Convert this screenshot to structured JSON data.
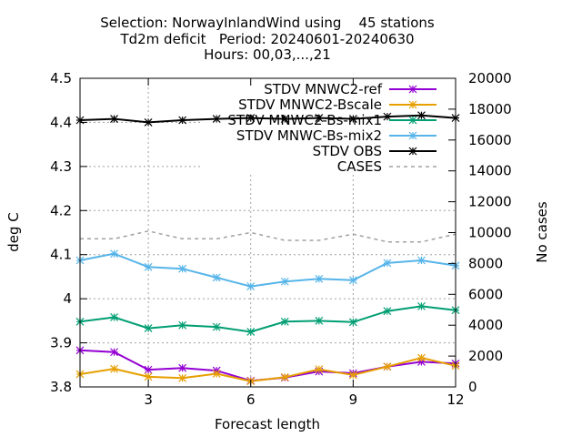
{
  "chart_data": {
    "type": "line",
    "title": [
      "Selection: NorwayInlandWind using    45 stations",
      "Td2m deficit   Period: 20240601-20240630",
      "Hours: 00,03,...,21"
    ],
    "xlabel": "Forecast length",
    "ylabel": "deg C",
    "y2label": "No cases",
    "xlim": [
      1,
      12
    ],
    "ylim": [
      3.8,
      4.5
    ],
    "y2lim": [
      0,
      20000
    ],
    "xticks": [
      3,
      6,
      9,
      12
    ],
    "yticks": [
      3.8,
      3.9,
      4.0,
      4.1,
      4.2,
      4.3,
      4.4,
      4.5
    ],
    "ytick_labels": [
      "3.8",
      "3.9",
      "4",
      "4.1",
      "4.2",
      "4.3",
      "4.4",
      "4.5"
    ],
    "y2ticks": [
      0,
      2000,
      4000,
      6000,
      8000,
      10000,
      12000,
      14000,
      16000,
      18000,
      20000
    ],
    "grid": true,
    "legend_position": "top-right",
    "x": [
      1,
      2,
      3,
      4,
      5,
      6,
      7,
      8,
      9,
      10,
      11,
      12
    ],
    "series": [
      {
        "name": "STDV MNWC2-ref",
        "color": "#9400d3",
        "axis": "y1",
        "marker": "star",
        "values": [
          3.883,
          3.879,
          3.839,
          3.843,
          3.837,
          3.814,
          3.821,
          3.835,
          3.831,
          3.846,
          3.857,
          3.853
        ]
      },
      {
        "name": "STDV MNWC2-Bscale",
        "color": "#e69f00",
        "axis": "y1",
        "marker": "star",
        "values": [
          3.829,
          3.841,
          3.823,
          3.82,
          3.83,
          3.813,
          3.822,
          3.84,
          3.827,
          3.846,
          3.866,
          3.848
        ]
      },
      {
        "name": "STDV MNWC2-Bs-mix1",
        "color": "#009e73",
        "axis": "y1",
        "marker": "star",
        "values": [
          3.948,
          3.958,
          3.933,
          3.94,
          3.936,
          3.925,
          3.948,
          3.95,
          3.947,
          3.972,
          3.983,
          3.974
        ]
      },
      {
        "name": "STDV MNWC-Bs-mix2",
        "color": "#56b4e9",
        "axis": "y1",
        "marker": "star",
        "values": [
          4.087,
          4.102,
          4.072,
          4.068,
          4.048,
          4.028,
          4.039,
          4.045,
          4.042,
          4.081,
          4.087,
          4.075
        ]
      },
      {
        "name": "STDV OBS",
        "color": "#000000",
        "axis": "y1",
        "marker": "star",
        "values": [
          4.405,
          4.408,
          4.4,
          4.405,
          4.408,
          4.41,
          4.408,
          4.41,
          4.408,
          4.413,
          4.416,
          4.41
        ]
      },
      {
        "name": "CASES",
        "color": "#a0a0a0",
        "axis": "y2",
        "marker": "none",
        "dashed": true,
        "values": [
          9600,
          9600,
          10100,
          9600,
          9600,
          10000,
          9500,
          9500,
          9900,
          9400,
          9400,
          9900
        ]
      }
    ]
  }
}
